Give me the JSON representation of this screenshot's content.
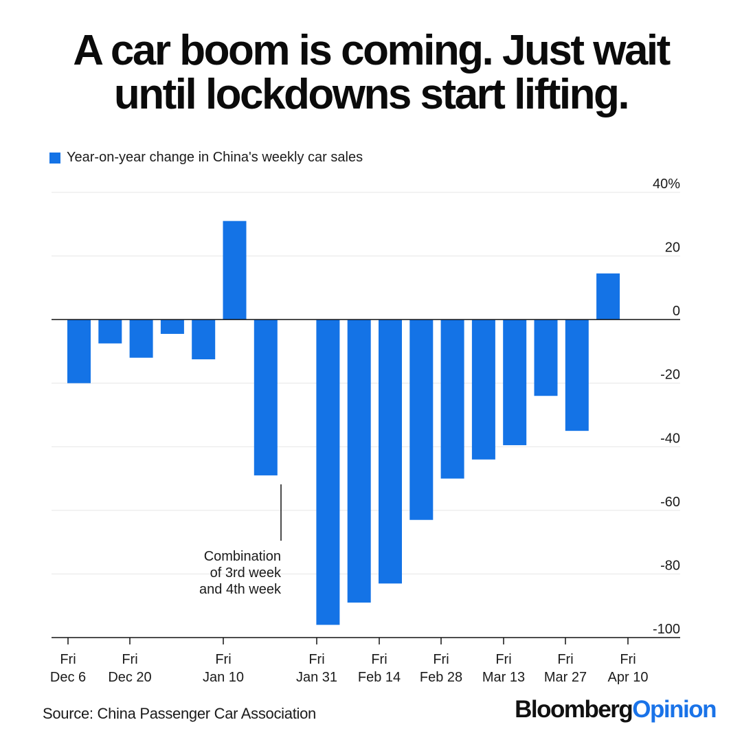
{
  "title": {
    "line1": "A car boom is coming. Just wait",
    "line2": "until lockdowns start lifting."
  },
  "legend": {
    "label": "Year-on-year change in China's weekly car sales",
    "color": "#1473e6"
  },
  "colors": {
    "bar": "#1473e6",
    "grid": "#e6e6e6",
    "axis": "#111111"
  },
  "chart_data": {
    "type": "bar",
    "title": "A car boom is coming. Just wait until lockdowns start lifting.",
    "series": [
      {
        "name": "Year-on-year change in China's weekly car sales",
        "values": [
          -20,
          -7.5,
          -12,
          -4.5,
          -12.5,
          31,
          -49,
          -96,
          -89,
          -83,
          -63,
          -50,
          -44,
          -39.5,
          -24,
          -35,
          14.5
        ]
      }
    ],
    "ylim": [
      -100,
      40
    ],
    "yticks": [
      {
        "value": 40,
        "label": "40%"
      },
      {
        "value": 20,
        "label": "20"
      },
      {
        "value": 0,
        "label": "0"
      },
      {
        "value": -20,
        "label": "-20"
      },
      {
        "value": -40,
        "label": "-40"
      },
      {
        "value": -60,
        "label": "-60"
      },
      {
        "value": -80,
        "label": "-80"
      },
      {
        "value": -100,
        "label": "-100"
      }
    ],
    "xticks": [
      {
        "index": 0,
        "line1": "Fri",
        "line2": "Dec 6"
      },
      {
        "index": 2,
        "line1": "Fri",
        "line2": "Dec 20"
      },
      {
        "index": 5,
        "line1": "Fri",
        "line2": "Jan 10"
      },
      {
        "index": 8,
        "line1": "Fri",
        "line2": "Jan 31"
      },
      {
        "index": 10,
        "line1": "Fri",
        "line2": "Feb 14"
      },
      {
        "index": 12,
        "line1": "Fri",
        "line2": "Feb 28"
      },
      {
        "index": 14,
        "line1": "Fri",
        "line2": "Mar 13"
      },
      {
        "index": 16,
        "line1": "Fri",
        "line2": "Mar 27"
      },
      {
        "index": 18,
        "line1": "Fri",
        "line2": "Apr 10"
      }
    ],
    "annotation": {
      "bar_index": 6,
      "lines": [
        "Combination",
        "of 3rd week",
        "and 4th week"
      ]
    },
    "xlabel": "",
    "ylabel": ""
  },
  "source": "Source: China Passenger Car Association",
  "brand": {
    "part1": "Bloomberg",
    "part2": "Opinion"
  }
}
